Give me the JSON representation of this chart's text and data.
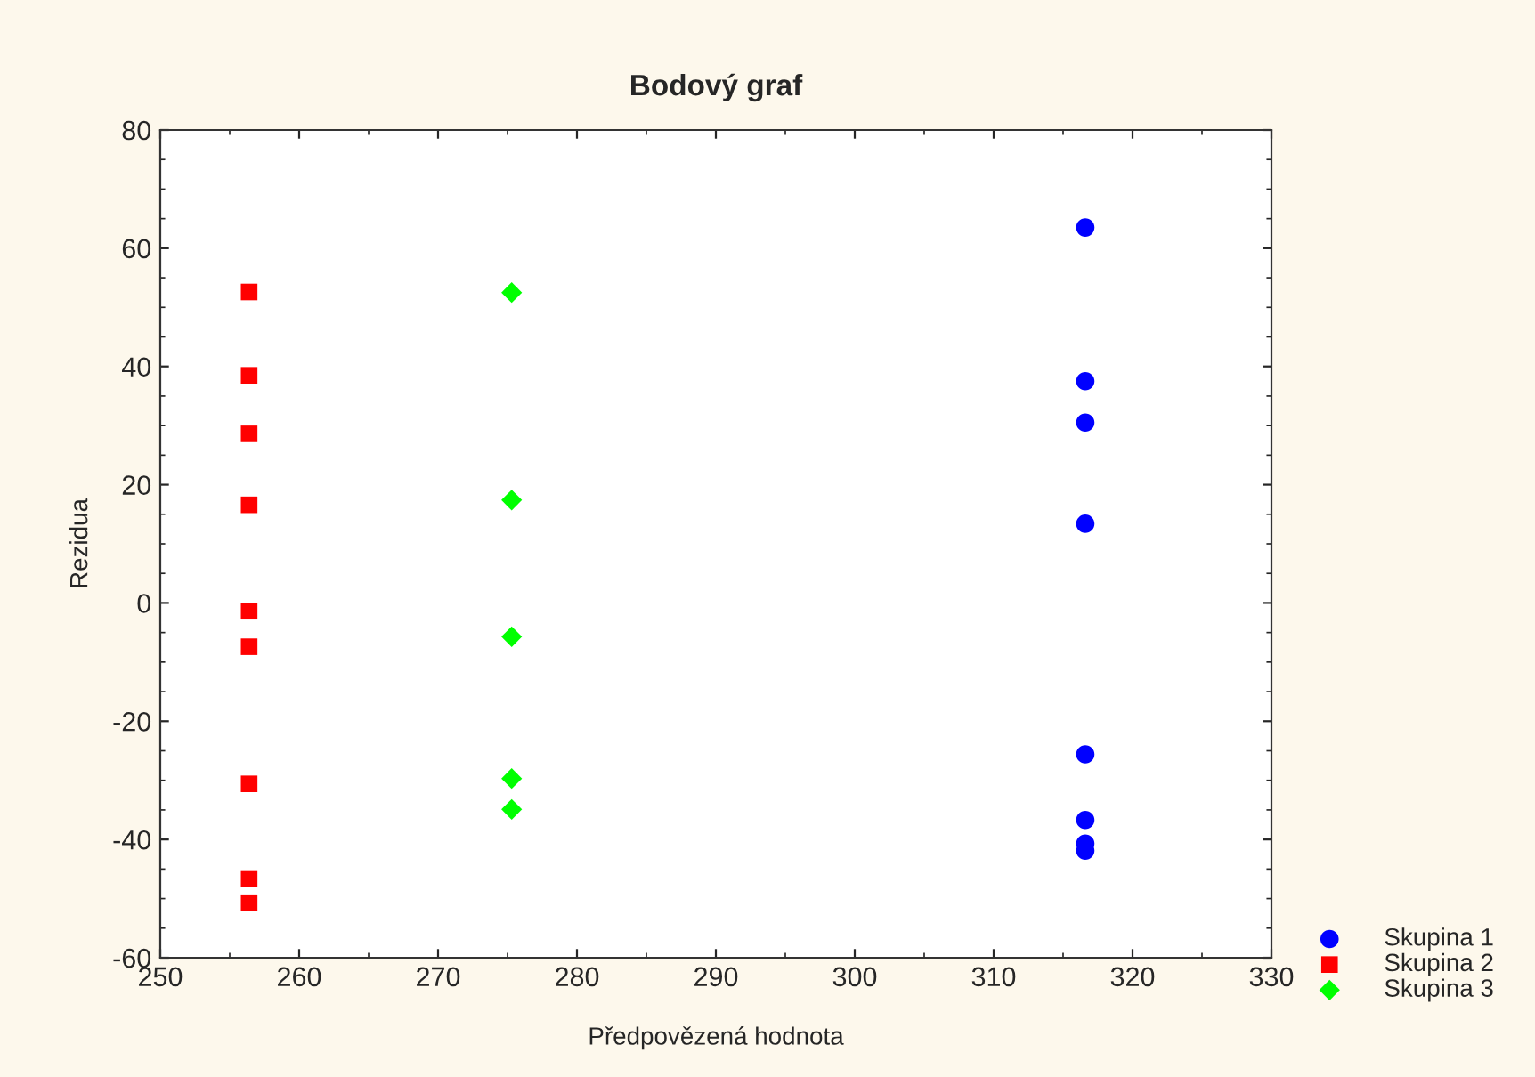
{
  "chart_data": {
    "type": "scatter",
    "title": "Bodový graf",
    "xlabel": "Předpovězená hodnota",
    "ylabel": "Rezidua",
    "xlim": [
      250,
      330
    ],
    "xticks": [
      250,
      260,
      270,
      280,
      290,
      300,
      310,
      320,
      330
    ],
    "ylim": [
      -60,
      80
    ],
    "yticks": [
      -60,
      -40,
      -20,
      0,
      20,
      40,
      60,
      80
    ],
    "grid": false,
    "legend": "bottom right",
    "series": [
      {
        "name": "Skupina 1",
        "color": "#0000ff",
        "marker": "circle",
        "x": [
          316.6,
          316.6,
          316.6,
          316.6,
          316.6,
          316.6,
          316.6,
          316.6
        ],
        "values": [
          63.5,
          37.5,
          30.5,
          13.4,
          -25.6,
          -36.7,
          -40.7,
          -41.9
        ]
      },
      {
        "name": "Skupina 2",
        "color": "#ff0000",
        "marker": "square",
        "x": [
          256.4,
          256.4,
          256.4,
          256.4,
          256.4,
          256.4,
          256.4,
          256.4,
          256.4
        ],
        "values": [
          52.6,
          38.5,
          28.6,
          16.6,
          -1.4,
          -7.4,
          -30.6,
          -46.6,
          -50.7
        ]
      },
      {
        "name": "Skupina 3",
        "color": "#00ff00",
        "marker": "diamond",
        "x": [
          275.3,
          275.3,
          275.3,
          275.3,
          275.3
        ],
        "values": [
          52.5,
          17.4,
          -5.7,
          -29.7,
          -34.9
        ]
      }
    ]
  }
}
